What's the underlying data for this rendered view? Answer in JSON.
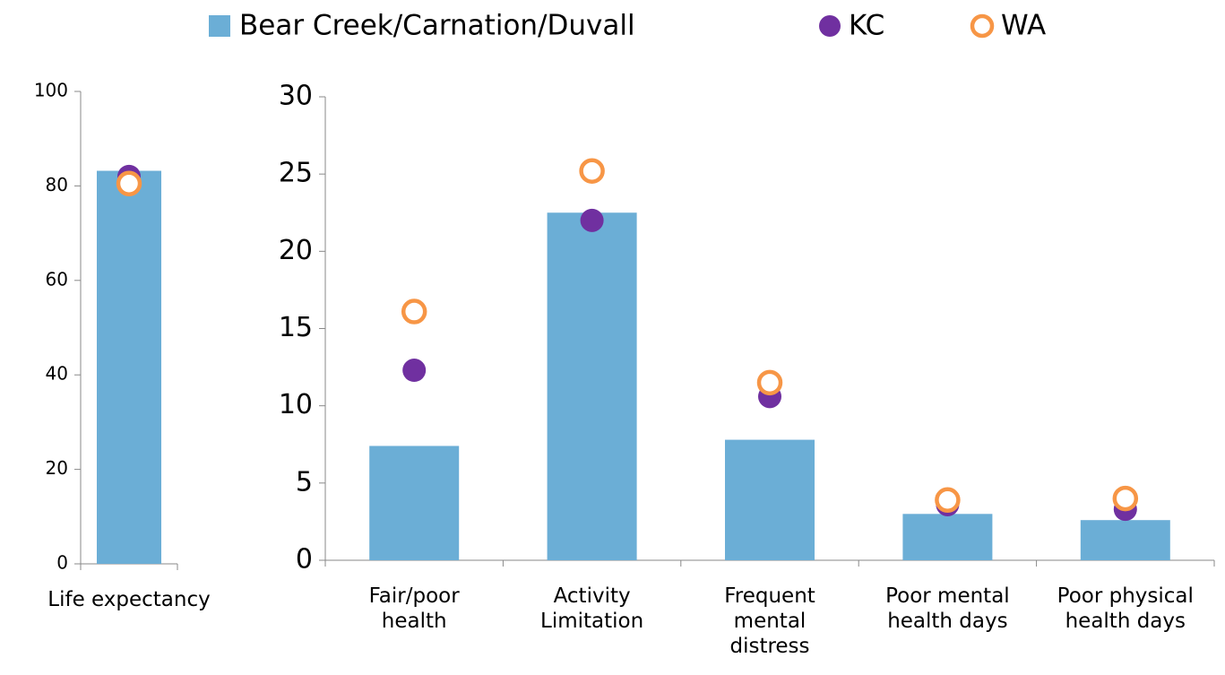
{
  "chart_data": [
    {
      "type": "bar",
      "categories": [
        "Life expectancy"
      ],
      "series": [
        {
          "color": "#6baed6",
          "marker": "bar",
          "values": [
            83.2
          ]
        },
        {
          "color": "#7030a0",
          "marker": "dot",
          "values": [
            82
          ]
        },
        {
          "color": "#f79646",
          "marker": "ring",
          "values": [
            80.5
          ]
        }
      ],
      "ylim": [
        0,
        100
      ],
      "yticks": [
        0,
        20,
        40,
        60,
        80,
        100
      ]
    },
    {
      "type": "bar",
      "categories": [
        "Fair/poor health",
        "Activity Limitation",
        "Frequent mental distress",
        "Poor mental health days",
        "Poor physical health days"
      ],
      "series": [
        {
          "name": "Bear Creek/Carnation/Duvall",
          "color": "#6baed6",
          "marker": "bar",
          "values": [
            7.4,
            22.5,
            7.8,
            3.0,
            2.6
          ]
        },
        {
          "name": "KC",
          "color": "#7030a0",
          "marker": "dot",
          "values": [
            12.3,
            22,
            10.6,
            3.6,
            3.3
          ]
        },
        {
          "name": "WA",
          "color": "#f79646",
          "marker": "ring",
          "values": [
            16.1,
            25.2,
            11.5,
            3.9,
            4.0
          ]
        }
      ],
      "ylim": [
        0,
        30
      ],
      "yticks": [
        0,
        5,
        10,
        15,
        20,
        25,
        30
      ]
    }
  ]
}
